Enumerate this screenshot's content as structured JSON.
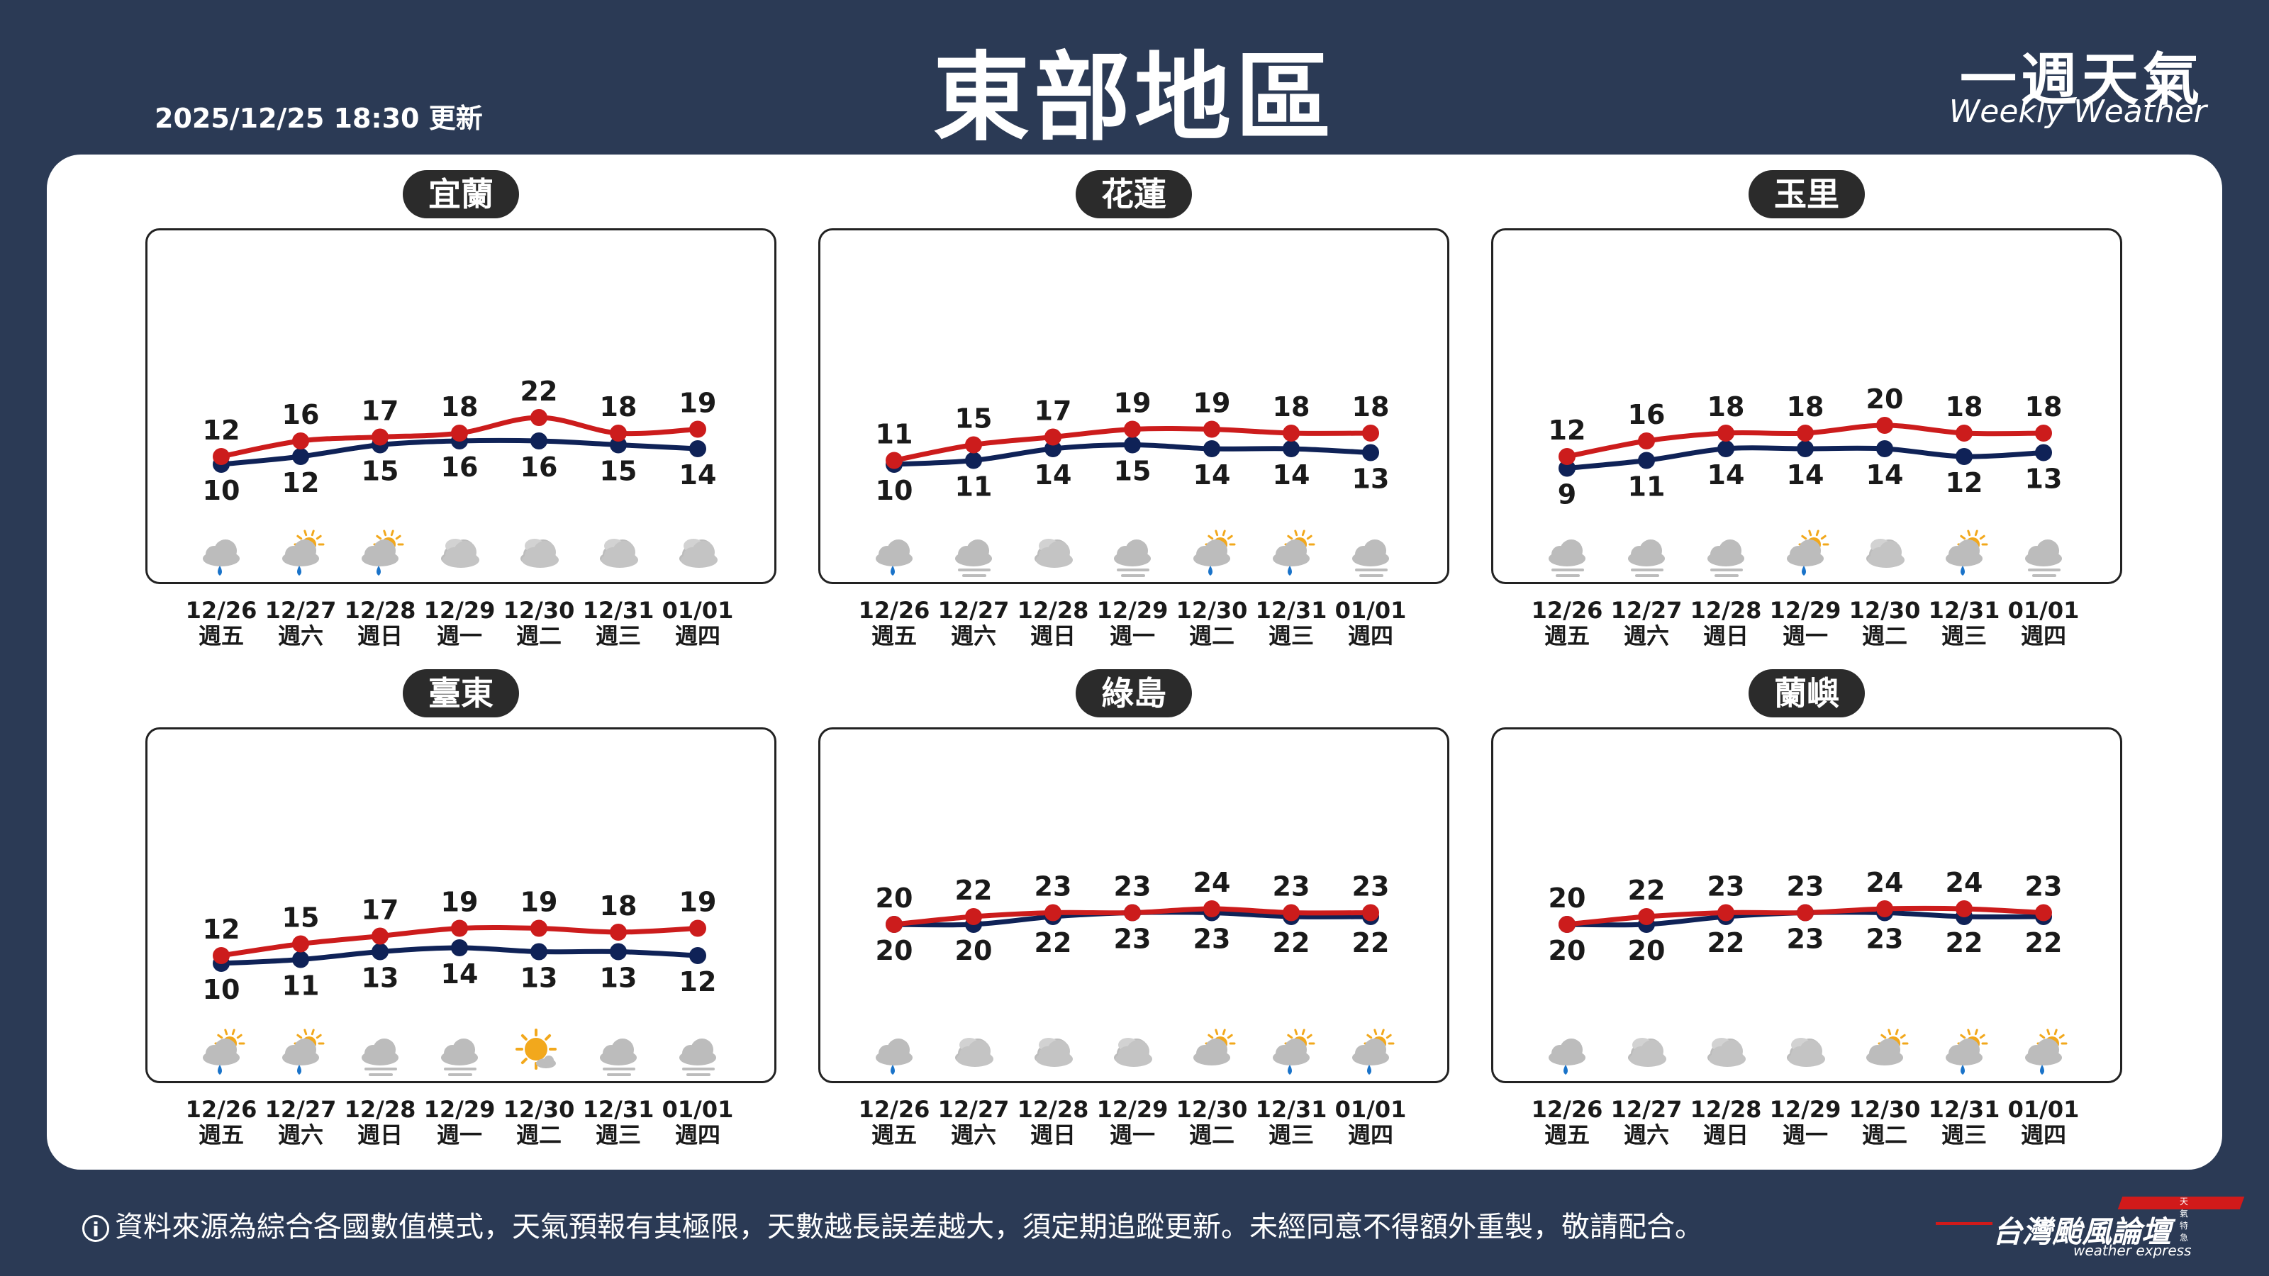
{
  "header": {
    "title": "東部地區",
    "updated": "2025/12/25 18:30 更新",
    "brand_zh": "一週天氣",
    "brand_en": "Weekly Weather"
  },
  "footer": {
    "info_icon": "i",
    "disclaimer": "資料來源為綜合各國數值模式，天氣預報有其極限，天數越長誤差越大，須定期追蹤更新。未經同意不得額外重製，敬請配合。",
    "logo_text": "台灣颱風論壇",
    "logo_sub": "weather express",
    "logo_tag": "天氣特急"
  },
  "colors": {
    "high": "#cc1c1c",
    "low": "#0f2257",
    "background": "#2b3a55",
    "label_bg": "#2b2b2b"
  },
  "chart_data": [
    {
      "type": "line",
      "station": "宜蘭",
      "dates": [
        "12/26",
        "12/27",
        "12/28",
        "12/29",
        "12/30",
        "12/31",
        "01/01"
      ],
      "days": [
        "週五",
        "週六",
        "週日",
        "週一",
        "週二",
        "週三",
        "週四"
      ],
      "series": [
        {
          "values": [
            12,
            16,
            17,
            18,
            22,
            18,
            19
          ]
        },
        {
          "values": [
            10,
            12,
            15,
            16,
            16,
            15,
            14
          ]
        }
      ],
      "icons": [
        "rain",
        "partly-sunny-rain",
        "partly-sunny-rain",
        "cloudy",
        "cloudy",
        "cloudy",
        "cloudy"
      ]
    },
    {
      "type": "line",
      "station": "花蓮",
      "dates": [
        "12/26",
        "12/27",
        "12/28",
        "12/29",
        "12/30",
        "12/31",
        "01/01"
      ],
      "days": [
        "週五",
        "週六",
        "週日",
        "週一",
        "週二",
        "週三",
        "週四"
      ],
      "series": [
        {
          "values": [
            11,
            15,
            17,
            19,
            19,
            18,
            18
          ]
        },
        {
          "values": [
            10,
            11,
            14,
            15,
            14,
            14,
            13
          ]
        }
      ],
      "icons": [
        "rain",
        "fog",
        "cloudy",
        "fog",
        "partly-sunny-rain",
        "partly-sunny-rain",
        "fog"
      ]
    },
    {
      "type": "line",
      "station": "玉里",
      "dates": [
        "12/26",
        "12/27",
        "12/28",
        "12/29",
        "12/30",
        "12/31",
        "01/01"
      ],
      "days": [
        "週五",
        "週六",
        "週日",
        "週一",
        "週二",
        "週三",
        "週四"
      ],
      "series": [
        {
          "values": [
            12,
            16,
            18,
            18,
            20,
            18,
            18
          ]
        },
        {
          "values": [
            9,
            11,
            14,
            14,
            14,
            12,
            13
          ]
        }
      ],
      "icons": [
        "fog",
        "fog",
        "fog",
        "partly-sunny-rain",
        "cloudy",
        "partly-sunny-rain",
        "fog"
      ]
    },
    {
      "type": "line",
      "station": "臺東",
      "dates": [
        "12/26",
        "12/27",
        "12/28",
        "12/29",
        "12/30",
        "12/31",
        "01/01"
      ],
      "days": [
        "週五",
        "週六",
        "週日",
        "週一",
        "週二",
        "週三",
        "週四"
      ],
      "series": [
        {
          "values": [
            12,
            15,
            17,
            19,
            19,
            18,
            19
          ]
        },
        {
          "values": [
            10,
            11,
            13,
            14,
            13,
            13,
            12
          ]
        }
      ],
      "icons": [
        "partly-sunny-rain",
        "partly-sunny-rain",
        "fog",
        "fog",
        "sunny",
        "fog",
        "fog"
      ]
    },
    {
      "type": "line",
      "station": "綠島",
      "dates": [
        "12/26",
        "12/27",
        "12/28",
        "12/29",
        "12/30",
        "12/31",
        "01/01"
      ],
      "days": [
        "週五",
        "週六",
        "週日",
        "週一",
        "週二",
        "週三",
        "週四"
      ],
      "series": [
        {
          "values": [
            20,
            22,
            23,
            23,
            24,
            23,
            23
          ]
        },
        {
          "values": [
            20,
            20,
            22,
            23,
            23,
            22,
            22
          ]
        }
      ],
      "icons": [
        "rain",
        "cloudy",
        "cloudy",
        "cloudy",
        "partly-sunny",
        "partly-sunny-rain",
        "partly-sunny-rain"
      ]
    },
    {
      "type": "line",
      "station": "蘭嶼",
      "dates": [
        "12/26",
        "12/27",
        "12/28",
        "12/29",
        "12/30",
        "12/31",
        "01/01"
      ],
      "days": [
        "週五",
        "週六",
        "週日",
        "週一",
        "週二",
        "週三",
        "週四"
      ],
      "series": [
        {
          "values": [
            20,
            22,
            23,
            23,
            24,
            24,
            23
          ]
        },
        {
          "values": [
            20,
            20,
            22,
            23,
            23,
            22,
            22
          ]
        }
      ],
      "icons": [
        "rain",
        "cloudy",
        "cloudy",
        "cloudy",
        "partly-sunny",
        "partly-sunny-rain",
        "partly-sunny-rain"
      ]
    }
  ]
}
